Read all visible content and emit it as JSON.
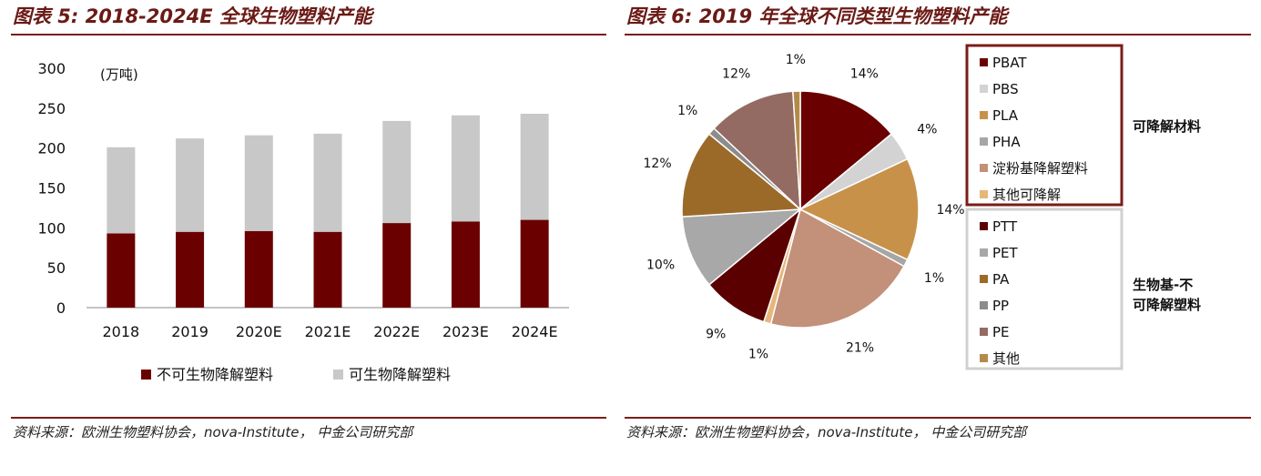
{
  "left": {
    "title": "图表 5: 2018-2024E 全球生物塑料产能",
    "source": "资料来源：欧洲生物塑料协会，nova-Institute， 中金公司研究部"
  },
  "right": {
    "title": "图表 6: 2019 年全球不同类型生物塑料产能",
    "source": "资料来源：欧洲生物塑料协会，nova-Institute， 中金公司研究部"
  },
  "chart_data": [
    {
      "type": "bar",
      "stacked": true,
      "unit_label": "(万吨)",
      "categories": [
        "2018",
        "2019",
        "2020E",
        "2021E",
        "2022E",
        "2023E",
        "2024E"
      ],
      "series": [
        {
          "name": "不可生物降解塑料",
          "color": "#6b0000",
          "values": [
            93,
            95,
            96,
            95,
            106,
            108,
            110
          ]
        },
        {
          "name": "可生物降解塑料",
          "color": "#c8c8c8",
          "values": [
            108,
            117,
            120,
            123,
            128,
            133,
            133
          ]
        }
      ],
      "ylim": [
        0,
        300
      ],
      "yticks": [
        0,
        50,
        100,
        150,
        200,
        250,
        300
      ],
      "legend_position": "bottom"
    },
    {
      "type": "pie",
      "slices": [
        {
          "name": "PBAT",
          "value": 14,
          "label": "14%",
          "color": "#6b0000"
        },
        {
          "name": "PBS",
          "value": 4,
          "label": "4%",
          "color": "#d3d3d3"
        },
        {
          "name": "PLA",
          "value": 14,
          "label": "14%",
          "color": "#c8914a"
        },
        {
          "name": "PHA",
          "value": 1,
          "label": "1%",
          "color": "#a6a6a6"
        },
        {
          "name": "淀粉基降解塑料",
          "value": 21,
          "label": "21%",
          "color": "#c3907a"
        },
        {
          "name": "其他可降解",
          "value": 1,
          "label": "1%",
          "color": "#e6b77a"
        },
        {
          "name": "PTT",
          "value": 9,
          "label": "9%",
          "color": "#5a0000"
        },
        {
          "name": "PET",
          "value": 10,
          "label": "10%",
          "color": "#a8a8a8"
        },
        {
          "name": "PA",
          "value": 12,
          "label": "12%",
          "color": "#9b6a29"
        },
        {
          "name": "PP",
          "value": 1,
          "label": "1%",
          "color": "#8c8c8c"
        },
        {
          "name": "PE",
          "value": 12,
          "label": "12%",
          "color": "#946b63"
        },
        {
          "name": "其他",
          "value": 1,
          "label": "1%",
          "color": "#b48a4a"
        }
      ],
      "legend_groups": [
        {
          "label": "可降解材料",
          "items": [
            "PBAT",
            "PBS",
            "PLA",
            "PHA",
            "淀粉基降解塑料",
            "其他可降解"
          ],
          "border_color": "#7a1d18"
        },
        {
          "label": "生物基-不可降解塑料",
          "label_lines": [
            "生物基-不",
            "可降解塑料"
          ],
          "items": [
            "PTT",
            "PET",
            "PA",
            "PP",
            "PE",
            "其他"
          ],
          "border_color": "#d0d0d0"
        }
      ]
    }
  ]
}
